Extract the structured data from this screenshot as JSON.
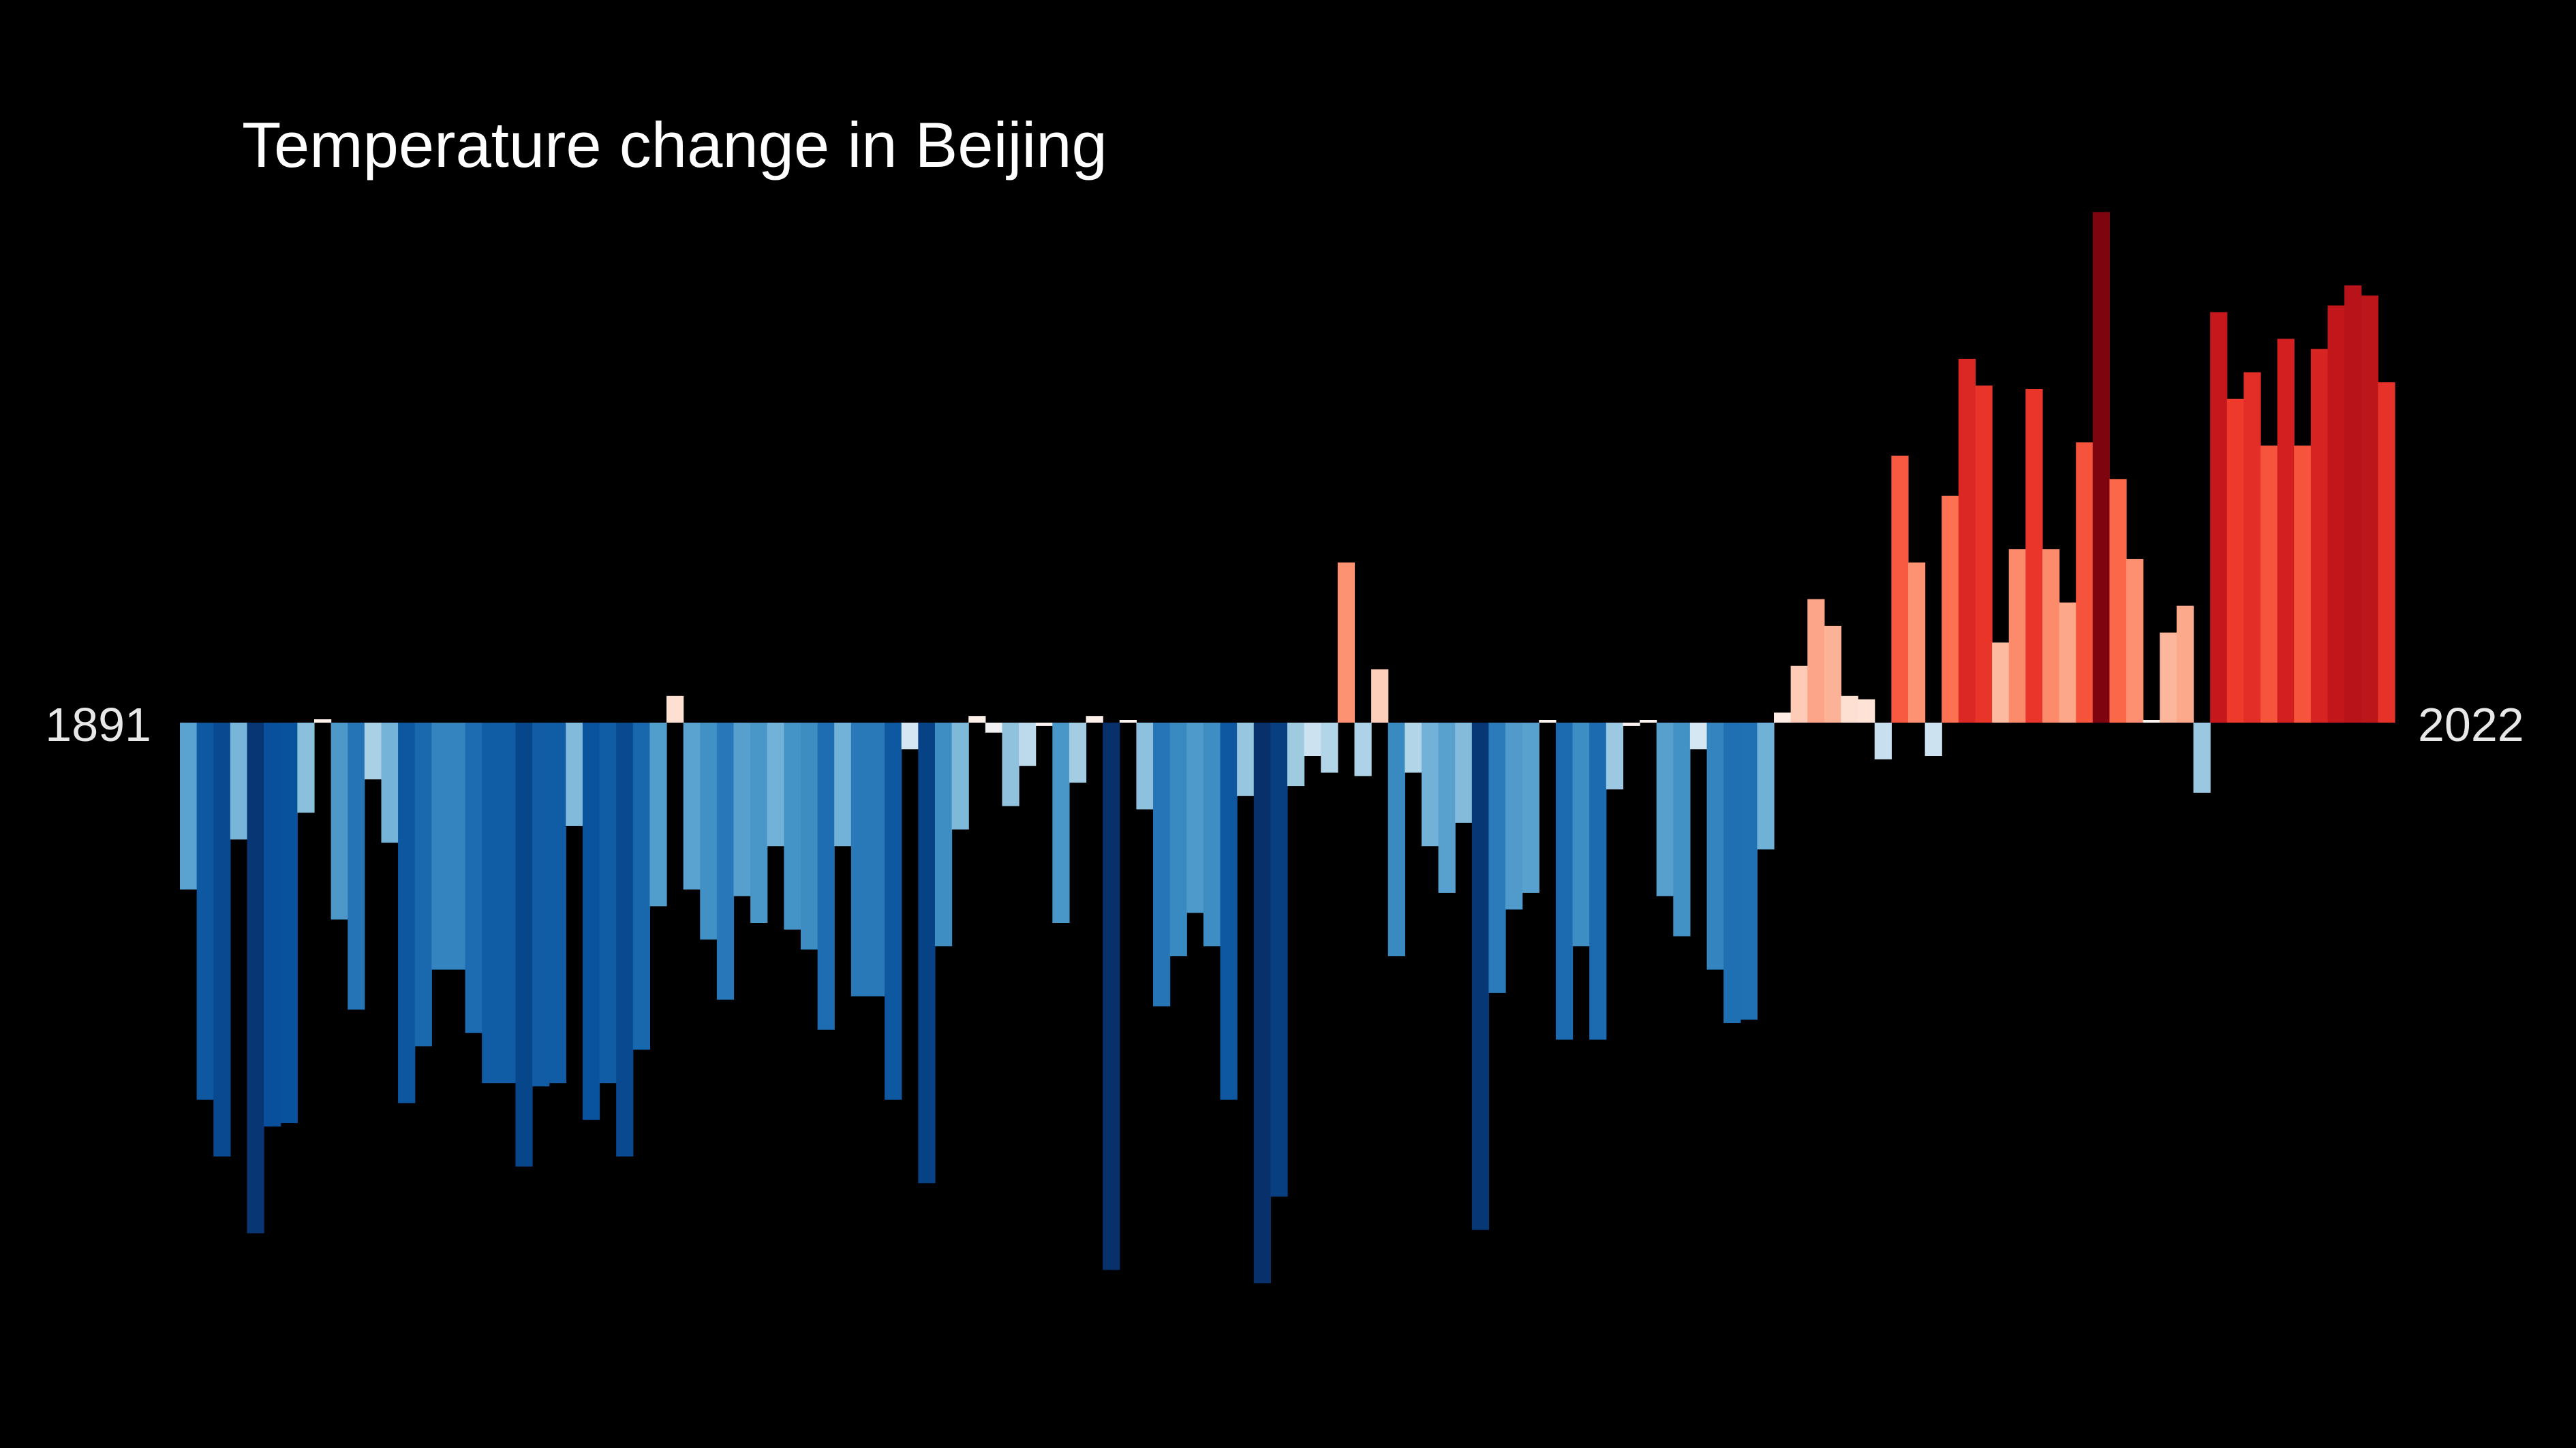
{
  "chart_data": {
    "type": "bar",
    "title": "Temperature change in Beijing",
    "start_label": "1891",
    "end_label": "2022",
    "x_start": 1891,
    "x_end": 2022,
    "xlabel": "",
    "ylabel": "",
    "ylim": [
      -1.7,
      1.6
    ],
    "grid": false,
    "legend": "none",
    "unit_note": "values are relative anomalies read from bar heights (no axis printed)",
    "years": [
      1891,
      1892,
      1893,
      1894,
      1895,
      1896,
      1897,
      1898,
      1899,
      1900,
      1901,
      1902,
      1903,
      1904,
      1905,
      1906,
      1907,
      1908,
      1909,
      1910,
      1911,
      1912,
      1913,
      1914,
      1915,
      1916,
      1917,
      1918,
      1919,
      1920,
      1921,
      1922,
      1923,
      1924,
      1925,
      1926,
      1927,
      1928,
      1929,
      1930,
      1931,
      1932,
      1933,
      1934,
      1935,
      1936,
      1937,
      1938,
      1939,
      1940,
      1941,
      1942,
      1943,
      1944,
      1945,
      1946,
      1947,
      1948,
      1949,
      1950,
      1951,
      1952,
      1953,
      1954,
      1955,
      1956,
      1957,
      1958,
      1959,
      1960,
      1961,
      1962,
      1963,
      1964,
      1965,
      1966,
      1967,
      1968,
      1969,
      1970,
      1971,
      1972,
      1973,
      1974,
      1975,
      1976,
      1977,
      1978,
      1979,
      1980,
      1981,
      1982,
      1983,
      1984,
      1985,
      1986,
      1987,
      1988,
      1989,
      1990,
      1991,
      1992,
      1993,
      1994,
      1995,
      1996,
      1997,
      1998,
      1999,
      2000,
      2001,
      2002,
      2003,
      2004,
      2005,
      2006,
      2007,
      2008,
      2009,
      2010,
      2011,
      2012,
      2013,
      2014,
      2015,
      2016,
      2017,
      2018,
      2019,
      2020,
      2021,
      2022
    ],
    "values": [
      -0.5,
      -1.13,
      -1.3,
      -0.35,
      -1.53,
      -1.21,
      -1.2,
      -0.27,
      0.01,
      -0.59,
      -0.86,
      -0.17,
      -0.36,
      -1.14,
      -0.97,
      -0.74,
      -0.74,
      -0.93,
      -1.08,
      -1.08,
      -1.33,
      -1.09,
      -1.08,
      -0.31,
      -1.19,
      -1.08,
      -1.3,
      -0.98,
      -0.55,
      0.08,
      -0.5,
      -0.65,
      -0.83,
      -0.52,
      -0.6,
      -0.37,
      -0.62,
      -0.68,
      -0.92,
      -0.37,
      -0.82,
      -0.82,
      -1.13,
      -0.08,
      -1.38,
      -0.67,
      -0.32,
      0.02,
      -0.03,
      -0.25,
      -0.13,
      -0.01,
      -0.6,
      -0.18,
      0.02,
      -1.64,
      0.0,
      -0.26,
      -0.85,
      -0.7,
      -0.57,
      -0.67,
      -1.13,
      -0.22,
      -1.68,
      -1.42,
      -0.19,
      -0.1,
      -0.15,
      0.48,
      -0.16,
      0.16,
      -0.7,
      -0.15,
      -0.37,
      -0.51,
      -0.3,
      -1.52,
      -0.81,
      -0.56,
      -0.51,
      0.0,
      -0.95,
      -0.67,
      -0.95,
      -0.2,
      -0.01,
      0.0,
      -0.52,
      -0.64,
      -0.08,
      -0.74,
      -0.9,
      -0.89,
      -0.38,
      0.03,
      0.17,
      0.37,
      0.29,
      0.08,
      0.07,
      -0.11,
      0.8,
      0.48,
      -0.1,
      0.68,
      1.09,
      1.01,
      0.24,
      0.52,
      1.0,
      0.52,
      0.36,
      0.84,
      1.53,
      0.73,
      0.49,
      0.0,
      0.27,
      0.35,
      -0.21,
      1.23,
      0.97,
      1.05,
      0.83,
      1.15,
      0.83,
      1.12,
      1.25,
      1.31,
      1.28,
      1.02
    ]
  }
}
